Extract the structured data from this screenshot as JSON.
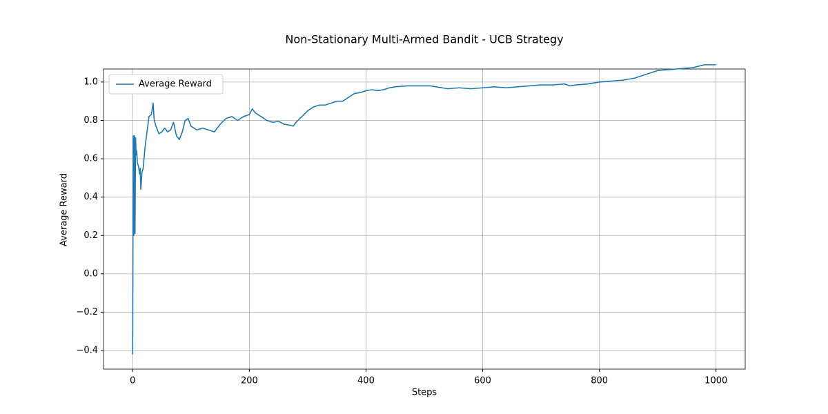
{
  "chart_data": {
    "type": "line",
    "title": "Non-Stationary Multi-Armed Bandit - UCB Strategy",
    "x_label": "Steps",
    "y_label": "Average Reward",
    "x": [
      0,
      1,
      2,
      3,
      4,
      5,
      6,
      7,
      8,
      10,
      12,
      13,
      14,
      16,
      18,
      20,
      22,
      25,
      28,
      32,
      35,
      37,
      40,
      45,
      50,
      55,
      60,
      65,
      70,
      75,
      80,
      85,
      90,
      95,
      100,
      110,
      120,
      130,
      140,
      150,
      160,
      170,
      180,
      190,
      200,
      205,
      210,
      220,
      230,
      240,
      250,
      260,
      270,
      275,
      280,
      290,
      300,
      310,
      320,
      330,
      340,
      350,
      360,
      370,
      380,
      390,
      400,
      410,
      420,
      430,
      440,
      450,
      470,
      490,
      510,
      520,
      540,
      560,
      580,
      600,
      620,
      640,
      660,
      680,
      700,
      720,
      740,
      750,
      760,
      780,
      800,
      820,
      840,
      860,
      880,
      900,
      920,
      940,
      960,
      980,
      1000
    ],
    "series": [
      {
        "name": "Average Reward",
        "color": "#1f77b4",
        "values": [
          -0.42,
          0.72,
          0.2,
          0.72,
          0.21,
          0.71,
          0.62,
          0.64,
          0.58,
          0.56,
          0.52,
          0.55,
          0.44,
          0.53,
          0.55,
          0.62,
          0.68,
          0.75,
          0.82,
          0.83,
          0.89,
          0.8,
          0.77,
          0.73,
          0.74,
          0.76,
          0.74,
          0.75,
          0.79,
          0.72,
          0.7,
          0.74,
          0.8,
          0.81,
          0.77,
          0.75,
          0.76,
          0.75,
          0.74,
          0.78,
          0.81,
          0.82,
          0.8,
          0.82,
          0.83,
          0.86,
          0.84,
          0.82,
          0.8,
          0.79,
          0.795,
          0.78,
          0.775,
          0.77,
          0.79,
          0.82,
          0.85,
          0.87,
          0.88,
          0.88,
          0.89,
          0.9,
          0.9,
          0.92,
          0.94,
          0.945,
          0.955,
          0.96,
          0.955,
          0.96,
          0.97,
          0.975,
          0.98,
          0.98,
          0.98,
          0.975,
          0.965,
          0.97,
          0.965,
          0.97,
          0.975,
          0.97,
          0.975,
          0.98,
          0.985,
          0.985,
          0.99,
          0.98,
          0.985,
          0.99,
          1.0,
          1.005,
          1.01,
          1.02,
          1.04,
          1.06,
          1.065,
          1.07,
          1.075,
          1.09,
          1.09
        ]
      }
    ],
    "xlim": [
      -50,
      1050
    ],
    "xticks": [
      0,
      200,
      400,
      600,
      800,
      1000
    ],
    "ylim": [
      -0.497,
      1.068
    ],
    "yticks": [
      {
        "value": -0.4,
        "label": "−0.4"
      },
      {
        "value": -0.2,
        "label": "−0.2"
      },
      {
        "value": 0.0,
        "label": "0.0"
      },
      0.2,
      0.4,
      0.6,
      0.8,
      {
        "value": 1.0,
        "label": "1.0"
      }
    ],
    "grid": true,
    "legend": "upper left"
  }
}
